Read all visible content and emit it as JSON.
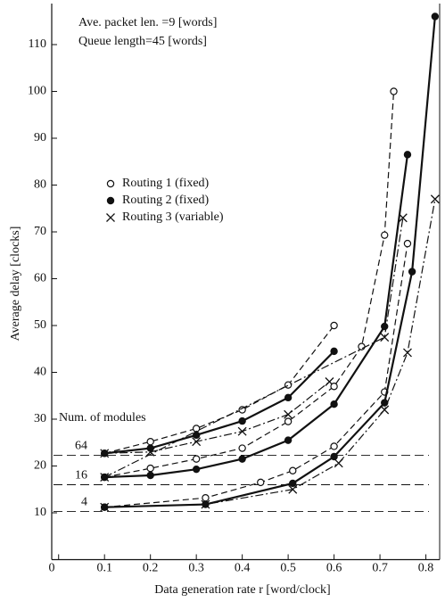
{
  "chart_data": {
    "type": "line",
    "y_label": "Average delay [clocks]",
    "x_label": "Data generation rate r [word/clock]",
    "annotations": [
      "Ave. packet len. =9 [words]",
      "Queue length=45 [words]"
    ],
    "modules_title": "Num. of modules",
    "module_labels": [
      "64",
      "16",
      "4"
    ],
    "reference_lines": [
      22.3,
      16,
      10.3
    ],
    "xlim": [
      -0.015,
      0.83
    ],
    "ylim": [
      0,
      118
    ],
    "xticks": [
      0,
      0.1,
      0.2,
      0.3,
      0.4,
      0.5,
      0.6,
      0.7,
      0.8
    ],
    "yticks": [
      10,
      20,
      30,
      40,
      50,
      60,
      70,
      80,
      90,
      100,
      110
    ],
    "color": "#111111",
    "legend": [
      {
        "name": "Routing 1 (fixed)",
        "marker": "open",
        "dash": "7,4"
      },
      {
        "name": "Routing 2 (fixed)",
        "marker": "filled",
        "dash": "none"
      },
      {
        "name": "Routing 3 (variable)",
        "marker": "cross",
        "dash": "9,3,2,3"
      }
    ],
    "series": [
      {
        "routing": 0,
        "x": [
          0.1,
          0.2,
          0.3,
          0.4,
          0.5,
          0.6
        ],
        "values": [
          22.7,
          25.2,
          28,
          32,
          37.3,
          50
        ]
      },
      {
        "routing": 1,
        "x": [
          0.1,
          0.2,
          0.3,
          0.4,
          0.5,
          0.6
        ],
        "values": [
          22.7,
          23.8,
          26.6,
          29.6,
          34.6,
          44.5
        ]
      },
      {
        "routing": 2,
        "x": [
          0.1,
          0.2,
          0.3,
          0.4,
          0.5,
          0.59
        ],
        "values": [
          22.7,
          23,
          25.2,
          27.4,
          31,
          38
        ]
      },
      {
        "routing": 0,
        "x": [
          0.1,
          0.2,
          0.3,
          0.4,
          0.5,
          0.6,
          0.66,
          0.71,
          0.73
        ],
        "values": [
          17.6,
          19.5,
          21.5,
          23.8,
          29.5,
          37,
          45.5,
          69.3,
          100
        ]
      },
      {
        "routing": 1,
        "x": [
          0.1,
          0.2,
          0.3,
          0.4,
          0.5,
          0.6,
          0.71,
          0.76
        ],
        "values": [
          17.6,
          18,
          19.3,
          21.5,
          25.5,
          33.2,
          49.8,
          86.5
        ]
      },
      {
        "routing": 2,
        "x": [
          0.1,
          0.71,
          0.75
        ],
        "values": [
          17.6,
          47.5,
          73
        ]
      },
      {
        "routing": 0,
        "x": [
          0.1,
          0.32,
          0.44,
          0.51,
          0.6,
          0.71,
          0.76
        ],
        "values": [
          11.2,
          13.2,
          16.5,
          19,
          24.2,
          35.8,
          67.5
        ]
      },
      {
        "routing": 1,
        "x": [
          0.1,
          0.32,
          0.51,
          0.6,
          0.71,
          0.77,
          0.82
        ],
        "values": [
          11.2,
          11.8,
          16.3,
          22,
          33.5,
          61.5,
          116
        ]
      },
      {
        "routing": 2,
        "x": [
          0.1,
          0.32,
          0.51,
          0.61,
          0.71,
          0.76,
          0.82
        ],
        "values": [
          11.2,
          11.8,
          15,
          20.6,
          32,
          44.2,
          77
        ]
      }
    ]
  }
}
